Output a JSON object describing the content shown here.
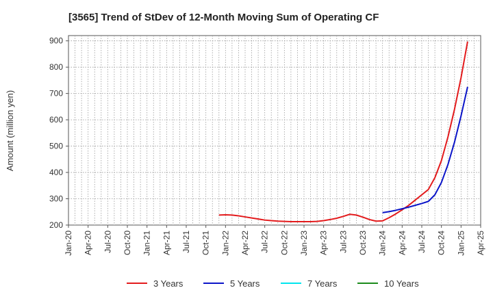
{
  "chart_data": {
    "type": "line",
    "title": "[3565]  Trend of StDev of 12-Month Moving Sum of Operating CF",
    "xlabel": "",
    "ylabel": "Amount (million yen)",
    "ylim": [
      200,
      920
    ],
    "yticks": [
      200,
      300,
      400,
      500,
      600,
      700,
      800,
      900
    ],
    "x_range": [
      "Jan-20",
      "Apr-25"
    ],
    "xtick_labels": [
      "Jan-20",
      "Apr-20",
      "Jul-20",
      "Oct-20",
      "Jan-21",
      "Apr-21",
      "Jul-21",
      "Oct-21",
      "Jan-22",
      "Apr-22",
      "Jul-22",
      "Oct-22",
      "Jan-23",
      "Apr-23",
      "Jul-23",
      "Oct-23",
      "Jan-24",
      "Apr-24",
      "Jul-24",
      "Oct-24",
      "Jan-25",
      "Apr-25"
    ],
    "grid": true,
    "legend_position": "bottom",
    "series": [
      {
        "name": "3 Years",
        "color": "#e31a1c",
        "points": [
          [
            "Dec-21",
            238
          ],
          [
            "Jan-22",
            239
          ],
          [
            "Feb-22",
            238
          ],
          [
            "Mar-22",
            235
          ],
          [
            "Apr-22",
            231
          ],
          [
            "May-22",
            227
          ],
          [
            "Jun-22",
            223
          ],
          [
            "Jul-22",
            219
          ],
          [
            "Aug-22",
            217
          ],
          [
            "Sep-22",
            215
          ],
          [
            "Oct-22",
            214
          ],
          [
            "Nov-22",
            213
          ],
          [
            "Dec-22",
            213
          ],
          [
            "Jan-23",
            213
          ],
          [
            "Feb-23",
            213
          ],
          [
            "Mar-23",
            214
          ],
          [
            "Apr-23",
            217
          ],
          [
            "May-23",
            221
          ],
          [
            "Jun-23",
            226
          ],
          [
            "Jul-23",
            233
          ],
          [
            "Aug-23",
            241
          ],
          [
            "Sep-23",
            238
          ],
          [
            "Oct-23",
            230
          ],
          [
            "Nov-23",
            221
          ],
          [
            "Dec-23",
            215
          ],
          [
            "Jan-24",
            216
          ],
          [
            "Feb-24",
            228
          ],
          [
            "Mar-24",
            242
          ],
          [
            "Apr-24",
            258
          ],
          [
            "May-24",
            275
          ],
          [
            "Jun-24",
            295
          ],
          [
            "Jul-24",
            315
          ],
          [
            "Aug-24",
            335
          ],
          [
            "Sep-24",
            380
          ],
          [
            "Oct-24",
            445
          ],
          [
            "Nov-24",
            535
          ],
          [
            "Dec-24",
            640
          ],
          [
            "Jan-25",
            760
          ],
          [
            "Feb-25",
            897
          ]
        ]
      },
      {
        "name": "5 Years",
        "color": "#0a14c8",
        "points": [
          [
            "Jan-24",
            247
          ],
          [
            "Feb-24",
            251
          ],
          [
            "Mar-24",
            256
          ],
          [
            "Apr-24",
            262
          ],
          [
            "May-24",
            268
          ],
          [
            "Jun-24",
            275
          ],
          [
            "Jul-24",
            282
          ],
          [
            "Aug-24",
            290
          ],
          [
            "Sep-24",
            315
          ],
          [
            "Oct-24",
            362
          ],
          [
            "Nov-24",
            430
          ],
          [
            "Dec-24",
            515
          ],
          [
            "Jan-25",
            615
          ],
          [
            "Feb-25",
            725
          ]
        ]
      },
      {
        "name": "7 Years",
        "color": "#00e5ee",
        "points": []
      },
      {
        "name": "10 Years",
        "color": "#1a8a1a",
        "points": []
      }
    ]
  }
}
